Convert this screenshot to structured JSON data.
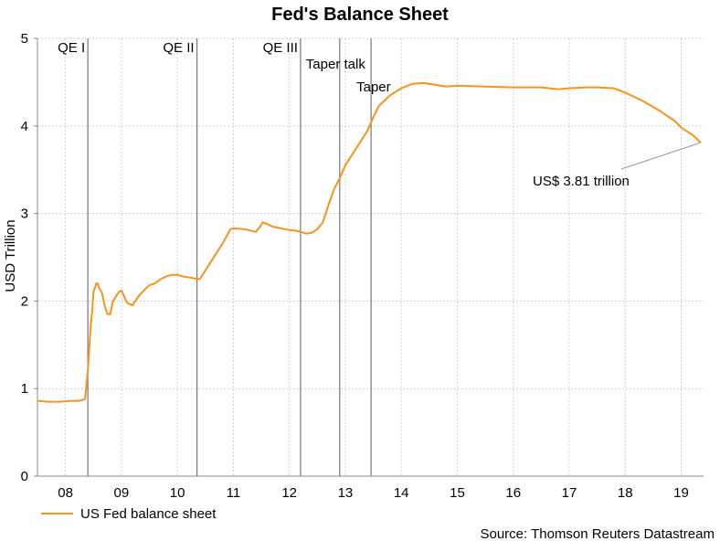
{
  "chart_data": {
    "type": "line",
    "title": "Fed's Balance Sheet",
    "ylabel": "USD Trillion",
    "xlabel": "",
    "ylim": [
      0,
      5
    ],
    "xlim": [
      2007.5,
      2019.4
    ],
    "yticks": [
      "0",
      "1",
      "2",
      "3",
      "4",
      "5"
    ],
    "xtick_labels": [
      "08",
      "09",
      "10",
      "11",
      "12",
      "13",
      "14",
      "15",
      "16",
      "17",
      "18",
      "19"
    ],
    "grid": true,
    "series": [
      {
        "name": "US Fed balance sheet",
        "color": "#F7941D",
        "x": [
          2007.5,
          2007.7,
          2007.9,
          2008.1,
          2008.25,
          2008.35,
          2008.4,
          2008.45,
          2008.48,
          2008.5,
          2008.55,
          2008.58,
          2008.6,
          2008.65,
          2008.7,
          2008.75,
          2008.8,
          2008.85,
          2008.9,
          2008.95,
          2009.0,
          2009.05,
          2009.1,
          2009.2,
          2009.3,
          2009.4,
          2009.5,
          2009.6,
          2009.7,
          2009.8,
          2009.9,
          2010.0,
          2010.1,
          2010.2,
          2010.3,
          2010.35,
          2010.4,
          2010.45,
          2010.5,
          2010.6,
          2010.8,
          2010.95,
          2011.0,
          2011.2,
          2011.4,
          2011.48,
          2011.52,
          2011.6,
          2011.7,
          2011.85,
          2012.0,
          2012.15,
          2012.2,
          2012.3,
          2012.4,
          2012.5,
          2012.6,
          2012.7,
          2012.8,
          2012.9,
          2013.0,
          2013.2,
          2013.4,
          2013.5,
          2013.6,
          2013.8,
          2014.0,
          2014.2,
          2014.4,
          2014.6,
          2014.8,
          2015.0,
          2015.5,
          2016.0,
          2016.5,
          2016.8,
          2017.0,
          2017.3,
          2017.5,
          2017.8,
          2018.0,
          2018.3,
          2018.6,
          2018.9,
          2019.0,
          2019.2,
          2019.35
        ],
        "values": [
          0.86,
          0.85,
          0.85,
          0.86,
          0.86,
          0.88,
          1.2,
          1.7,
          1.9,
          2.1,
          2.2,
          2.2,
          2.15,
          2.1,
          1.95,
          1.85,
          1.85,
          2.0,
          2.05,
          2.1,
          2.12,
          2.05,
          1.98,
          1.95,
          2.05,
          2.12,
          2.18,
          2.2,
          2.25,
          2.28,
          2.3,
          2.3,
          2.28,
          2.27,
          2.26,
          2.25,
          2.25,
          2.3,
          2.35,
          2.45,
          2.65,
          2.82,
          2.83,
          2.82,
          2.79,
          2.85,
          2.9,
          2.88,
          2.85,
          2.83,
          2.81,
          2.8,
          2.79,
          2.77,
          2.78,
          2.82,
          2.9,
          3.1,
          3.28,
          3.4,
          3.55,
          3.75,
          3.95,
          4.1,
          4.23,
          4.35,
          4.43,
          4.48,
          4.49,
          4.47,
          4.45,
          4.46,
          4.45,
          4.44,
          4.44,
          4.42,
          4.43,
          4.44,
          4.44,
          4.43,
          4.38,
          4.29,
          4.18,
          4.05,
          3.98,
          3.9,
          3.81
        ]
      }
    ],
    "events": [
      {
        "label": "QE I",
        "x": 2008.4
      },
      {
        "label": "QE II",
        "x": 2010.35
      },
      {
        "label": "QE III",
        "x": 2012.2
      },
      {
        "label": "Taper talk",
        "x": 2012.9
      },
      {
        "label": "Taper",
        "x": 2013.46
      }
    ],
    "annotation": {
      "text": "US$ 3.81 trillion",
      "x": 2019.35,
      "y": 3.81
    },
    "legend": {
      "position": "bottom-left",
      "label": "US Fed balance sheet"
    },
    "source": "Source: Thomson Reuters Datastream"
  }
}
